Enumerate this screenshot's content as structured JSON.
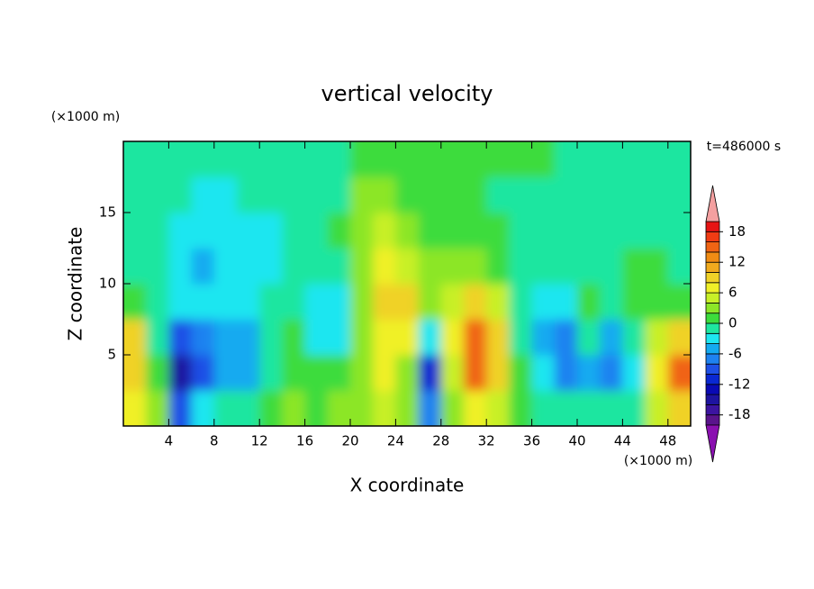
{
  "chart_data": {
    "type": "contour",
    "title": "vertical velocity",
    "x_label": "X coordinate",
    "y_label": "Z coordinate",
    "x_unit": "(×1000 m)",
    "y_unit": "(×1000 m)",
    "annotation": "t=486000 s",
    "x": [
      1,
      3,
      5,
      7,
      9,
      11,
      13,
      15,
      17,
      19,
      21,
      23,
      25,
      27,
      29,
      31,
      33,
      35,
      37,
      39,
      41,
      43,
      45,
      47,
      49
    ],
    "y": [
      1.25,
      3.75,
      6.25,
      8.75,
      11.25,
      13.75,
      16.25,
      18.75
    ],
    "values": [
      [
        6,
        2,
        -10,
        -4,
        -2,
        -2,
        0,
        3,
        1,
        2,
        2,
        4,
        3,
        -8,
        2,
        6,
        5,
        1,
        -1,
        -2,
        -1,
        -2,
        -1,
        4,
        8
      ],
      [
        8,
        0,
        -16,
        -10,
        -6,
        -6,
        -2,
        1,
        1,
        1,
        3,
        6,
        3,
        -12,
        4,
        14,
        8,
        0,
        -3,
        -8,
        -6,
        -8,
        -3,
        6,
        14
      ],
      [
        8,
        -1,
        -10,
        -8,
        -6,
        -6,
        -2,
        0,
        -3,
        -4,
        2,
        7,
        6,
        -4,
        6,
        14,
        8,
        -2,
        -5,
        -8,
        -2,
        -5,
        -2,
        4,
        8
      ],
      [
        0,
        -2,
        -4,
        -4,
        -4,
        -4,
        -2,
        -2,
        -3,
        -4,
        3,
        9,
        8,
        2,
        4,
        8,
        5,
        -1,
        -3,
        -3,
        1,
        -1,
        1,
        1,
        1
      ],
      [
        -1,
        -2,
        -4,
        -5,
        -4,
        -4,
        -3,
        -2,
        -1,
        -1,
        3,
        7,
        5,
        3,
        2,
        3,
        1,
        -1,
        -1,
        -1,
        -1,
        -1,
        0,
        0,
        -1
      ],
      [
        -1,
        -2,
        -3,
        -4,
        -4,
        -3,
        -3,
        -2,
        -1,
        0,
        3,
        4,
        3,
        1,
        1,
        1,
        0,
        -1,
        -1,
        -1,
        -1,
        -1,
        -1,
        -1,
        -1
      ],
      [
        -1,
        -1,
        -2,
        -3,
        -3,
        -2,
        -2,
        -1,
        -1,
        -1,
        2,
        2,
        1,
        0,
        0,
        0,
        -1,
        -1,
        -1,
        -1,
        -1,
        -1,
        -1,
        -1,
        -1
      ],
      [
        -1,
        -1,
        -1,
        -1,
        -1,
        -1,
        -1,
        -1,
        -1,
        -1,
        1,
        1,
        0,
        0,
        0,
        0,
        0,
        0,
        0,
        -1,
        -1,
        -1,
        -1,
        -1,
        -1
      ]
    ],
    "levels": [
      -20,
      -18,
      -16,
      -14,
      -12,
      -10,
      -8,
      -6,
      -4,
      -2,
      0,
      2,
      4,
      6,
      8,
      10,
      12,
      14,
      16,
      18,
      20
    ],
    "colors": [
      "#5a148c",
      "#3c14a0",
      "#1e14a0",
      "#0a0ab4",
      "#0a28d2",
      "#1e50e6",
      "#1e82f0",
      "#14aaf0",
      "#1ee6f0",
      "#1ee6a0",
      "#3cdc3c",
      "#8ce628",
      "#c8f028",
      "#f0f028",
      "#f0d228",
      "#f0aa1e",
      "#f08c14",
      "#f06414",
      "#f03c14",
      "#e61414"
    ],
    "over_color": "#f4a0a0",
    "under_color": "#8a10b0",
    "xlim": [
      0,
      50
    ],
    "ylim": [
      0,
      20
    ],
    "xticks": [
      4,
      8,
      12,
      16,
      20,
      24,
      28,
      32,
      36,
      40,
      44,
      48
    ],
    "yticks": [
      5,
      10,
      15
    ],
    "cbar_ticks": [
      -18,
      -12,
      -6,
      0,
      6,
      12,
      18
    ]
  }
}
